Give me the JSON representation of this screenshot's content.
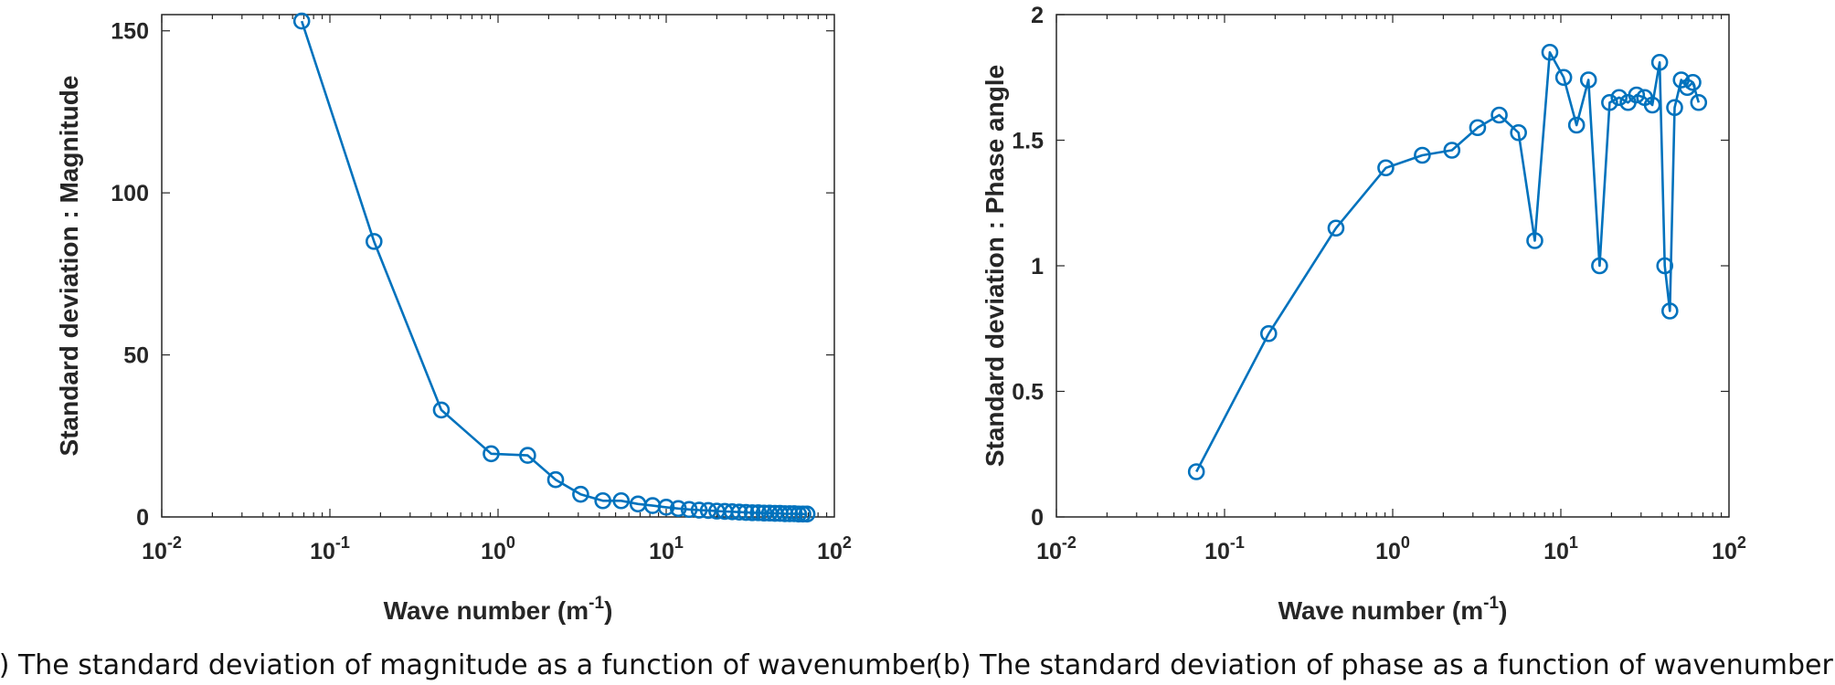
{
  "chart_data": [
    {
      "type": "line",
      "xscale": "log",
      "xlim": [
        0.01,
        100
      ],
      "ylim": [
        0,
        155
      ],
      "xticks": [
        "10^-2",
        "10^-1",
        "10^0",
        "10^1",
        "10^2"
      ],
      "yticks": [
        "0",
        "50",
        "100",
        "150"
      ],
      "xlabel": "Wave number (m-1)",
      "xlabel_main": "Wave number (m",
      "xlabel_sup": "-1",
      "xlabel_close": ")",
      "ylabel": "Standard deviation : Magnitude",
      "caption": "(a) The standard deviation of magnitude as a function of wavenumber",
      "color": "#0072BD",
      "marker": "circle",
      "grid": false,
      "series": [
        {
          "x": [
            0.068,
            0.183,
            0.46,
            0.91,
            1.5,
            2.2,
            3.1,
            4.2,
            5.4,
            6.8,
            8.3,
            10.0,
            11.8,
            13.7,
            15.7,
            17.8,
            20.0,
            22.3,
            24.7,
            27.2,
            29.8,
            32.5,
            35.3,
            38.2,
            41.2,
            44.3,
            47.5,
            50.8,
            54.2,
            57.7,
            61.3,
            65.0,
            68.8
          ],
          "y": [
            153,
            85,
            33,
            19.5,
            19,
            11.5,
            7,
            5,
            5,
            4,
            3.5,
            3,
            2.6,
            2.3,
            2.1,
            2.0,
            1.8,
            1.7,
            1.6,
            1.5,
            1.4,
            1.3,
            1.3,
            1.2,
            1.2,
            1.1,
            1.1,
            1.0,
            1.0,
            1.0,
            0.9,
            0.9,
            0.9
          ]
        }
      ]
    },
    {
      "type": "line",
      "xscale": "log",
      "xlim": [
        0.01,
        100
      ],
      "ylim": [
        0,
        2
      ],
      "xticks": [
        "10^-2",
        "10^-1",
        "10^0",
        "10^1",
        "10^2"
      ],
      "yticks": [
        "0",
        "0.5",
        "1",
        "1.5",
        "2"
      ],
      "xlabel": "Wave number (m-1)",
      "xlabel_main": "Wave number (m",
      "xlabel_sup": "-1",
      "xlabel_close": ")",
      "ylabel": "Standard deviation : Phase angle",
      "caption": "(b) The standard deviation of phase as a function of wavenumber",
      "color": "#0072BD",
      "marker": "circle",
      "grid": false,
      "series": [
        {
          "x": [
            0.068,
            0.183,
            0.46,
            0.91,
            1.5,
            2.25,
            3.2,
            4.3,
            5.6,
            7.0,
            8.6,
            10.4,
            12.4,
            14.6,
            17.0,
            19.5,
            22.2,
            25.1,
            28.2,
            31.5,
            35.0,
            38.7,
            41.5,
            44.5,
            47.5,
            52.0,
            56.5,
            61.0,
            66.0
          ],
          "y": [
            0.18,
            0.73,
            1.15,
            1.39,
            1.44,
            1.46,
            1.55,
            1.6,
            1.53,
            1.1,
            1.85,
            1.75,
            1.56,
            1.74,
            1.0,
            1.65,
            1.67,
            1.65,
            1.68,
            1.67,
            1.64,
            1.81,
            1.0,
            0.82,
            1.63,
            1.74,
            1.71,
            1.73,
            1.65
          ]
        }
      ]
    }
  ]
}
